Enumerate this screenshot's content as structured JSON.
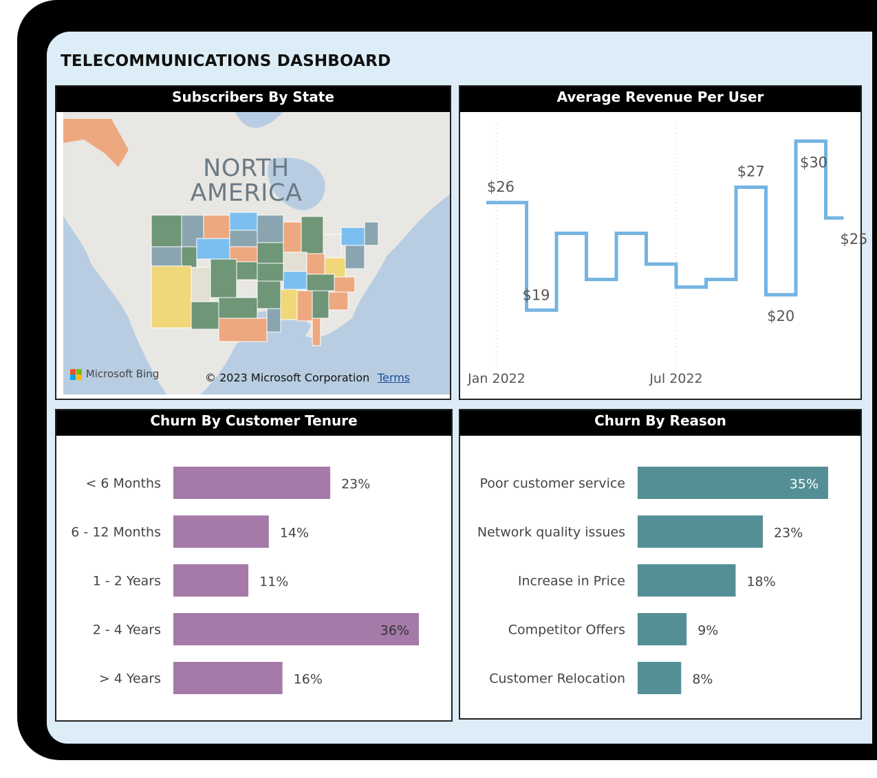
{
  "dashboard": {
    "title": "TELECOMMUNICATIONS DASHBOARD"
  },
  "map": {
    "header": "Subscribers By State",
    "label_line1": "NORTH",
    "label_line2": "AMERICA",
    "logo_text": "Microsoft Bing",
    "copyright": "© 2023 Microsoft Corporation",
    "terms": "Terms"
  },
  "arpu": {
    "header": "Average Revenue Per User"
  },
  "tenure": {
    "header": "Churn By Customer Tenure"
  },
  "reason": {
    "header": "Churn By Reason"
  },
  "colors": {
    "line": "#74b4e2",
    "tenure_bar": "#a57aa8",
    "reason_bar": "#558f96",
    "state_green": "#6e9677",
    "state_orange": "#eda880",
    "state_blue": "#7bbff0",
    "state_yellow": "#f0d779",
    "state_grey": "#8aa5b0",
    "state_beige": "#e3e0d3"
  },
  "chart_data": [
    {
      "type": "line",
      "title": "Average Revenue Per User",
      "step": true,
      "x": [
        "Jan 2022",
        "Feb 2022",
        "Mar 2022",
        "Apr 2022",
        "May 2022",
        "Jun 2022",
        "Jul 2022",
        "Aug 2022",
        "Sep 2022",
        "Oct 2022",
        "Nov 2022",
        "Dec 2022"
      ],
      "x_tick_labels": [
        "Jan 2022",
        "Jul 2022"
      ],
      "series": [
        {
          "values": [
            26,
            19,
            24,
            21,
            24,
            22,
            20.5,
            21,
            27,
            20,
            30,
            25
          ]
        }
      ],
      "data_labels": {
        "0": "$26",
        "1": "$19",
        "8": "$27",
        "9": "$20",
        "10": "$30",
        "11": "$25"
      },
      "ylim": [
        17,
        31
      ]
    },
    {
      "type": "bar",
      "orientation": "horizontal",
      "title": "Churn By Customer Tenure",
      "categories": [
        "< 6 Months",
        "6 - 12 Months",
        "1 - 2 Years",
        "2 - 4 Years",
        "> 4 Years"
      ],
      "values": [
        23,
        14,
        11,
        36,
        16
      ],
      "value_labels": [
        "23%",
        "14%",
        "11%",
        "36%",
        "16%"
      ],
      "xlim": [
        0,
        36
      ]
    },
    {
      "type": "bar",
      "orientation": "horizontal",
      "title": "Churn By Reason",
      "categories": [
        "Poor customer service",
        "Network quality issues",
        "Increase in Price",
        "Competitor Offers",
        "Customer Relocation"
      ],
      "values": [
        35,
        23,
        18,
        9,
        8
      ],
      "value_labels": [
        "35%",
        "23%",
        "18%",
        "9%",
        "8%"
      ],
      "xlim": [
        0,
        35
      ]
    }
  ]
}
